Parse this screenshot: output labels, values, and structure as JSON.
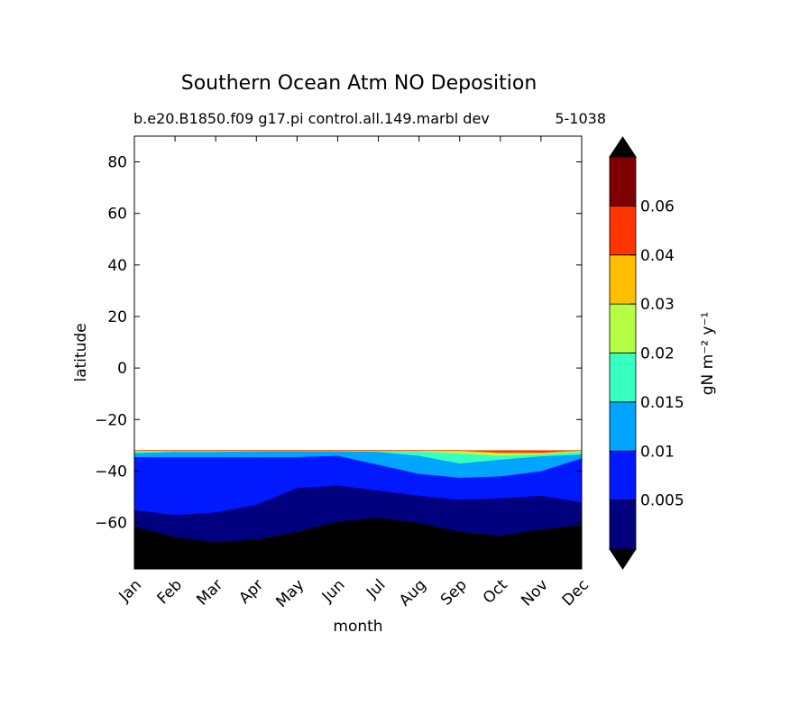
{
  "chart_data": {
    "type": "heatmap",
    "title": "Southern Ocean Atm NO Deposition",
    "subtitle_left": "b.e20.B1850.f09 g17.pi control.all.149.marbl dev",
    "subtitle_right": "5-1038",
    "xlabel": "month",
    "ylabel": "latitude",
    "x_categories": [
      "Jan",
      "Feb",
      "Mar",
      "Apr",
      "May",
      "Jun",
      "Jul",
      "Aug",
      "Sep",
      "Oct",
      "Nov",
      "Dec"
    ],
    "ylim": [
      -78,
      90
    ],
    "yticks": [
      80,
      60,
      40,
      20,
      0,
      -20,
      -40,
      -60
    ],
    "ytick_labels": [
      "80",
      "60",
      "40",
      "20",
      "0",
      "−20",
      "−40",
      "−60"
    ],
    "grid": false,
    "colorbar": {
      "label": "gN m⁻² y⁻¹",
      "levels": [
        0.0,
        0.005,
        0.01,
        0.015,
        0.02,
        0.03,
        0.04,
        0.06,
        0.07
      ],
      "tick_labels": [
        "0.005",
        "0.01",
        "0.015",
        "0.02",
        "0.03",
        "0.04",
        "0.06"
      ],
      "colors": [
        "#00007f",
        "#0019ff",
        "#00a5ff",
        "#35ffc1",
        "#b4ff43",
        "#ffbf00",
        "#ff3500",
        "#7f0000"
      ],
      "under_color": "#000000",
      "over_color": "#000000",
      "extend": "both"
    },
    "contour_boundaries": {
      "description_levels": [
        "0.0",
        "0.005",
        "0.01",
        "0.015",
        "0.02",
        "0.03",
        "0.04"
      ],
      "data_southern_limit": -78,
      "data_northern_limit": -32,
      "b_0_000": [
        -61.5,
        -65.5,
        -67.5,
        -66.5,
        -63.5,
        -59.5,
        -58,
        -60,
        -63.5,
        -65,
        -62.5,
        -61
      ],
      "b_0_005": [
        -55,
        -57,
        -56,
        -53,
        -46.5,
        -45.5,
        -47.5,
        -49.5,
        -51,
        -50.5,
        -49.5,
        -52
      ],
      "b_0_010": [
        -34.5,
        -34.5,
        -34.5,
        -34.5,
        -34.5,
        -34,
        -37.5,
        -41,
        -42.5,
        -42,
        -40,
        -35
      ],
      "b_0_015": [
        -33,
        -32.5,
        -32.5,
        -32.3,
        -32.3,
        -32.3,
        -32.5,
        -34,
        -37,
        -35.5,
        -34.2,
        -33.5
      ],
      "b_0_020": [
        -32.3,
        -32,
        -32,
        -32,
        -32,
        -32,
        -32,
        -32.2,
        -33.2,
        -34,
        -33.5,
        -32.5
      ],
      "b_0_030": [
        -32,
        -32,
        -32,
        -32,
        -32,
        -32,
        -32,
        -32,
        -32.4,
        -33,
        -33,
        -32.2
      ],
      "b_0_040": [
        -32,
        -32,
        -32,
        -32,
        -32,
        -32,
        -32,
        -32,
        -32,
        -32.8,
        -32.8,
        -32
      ]
    }
  }
}
